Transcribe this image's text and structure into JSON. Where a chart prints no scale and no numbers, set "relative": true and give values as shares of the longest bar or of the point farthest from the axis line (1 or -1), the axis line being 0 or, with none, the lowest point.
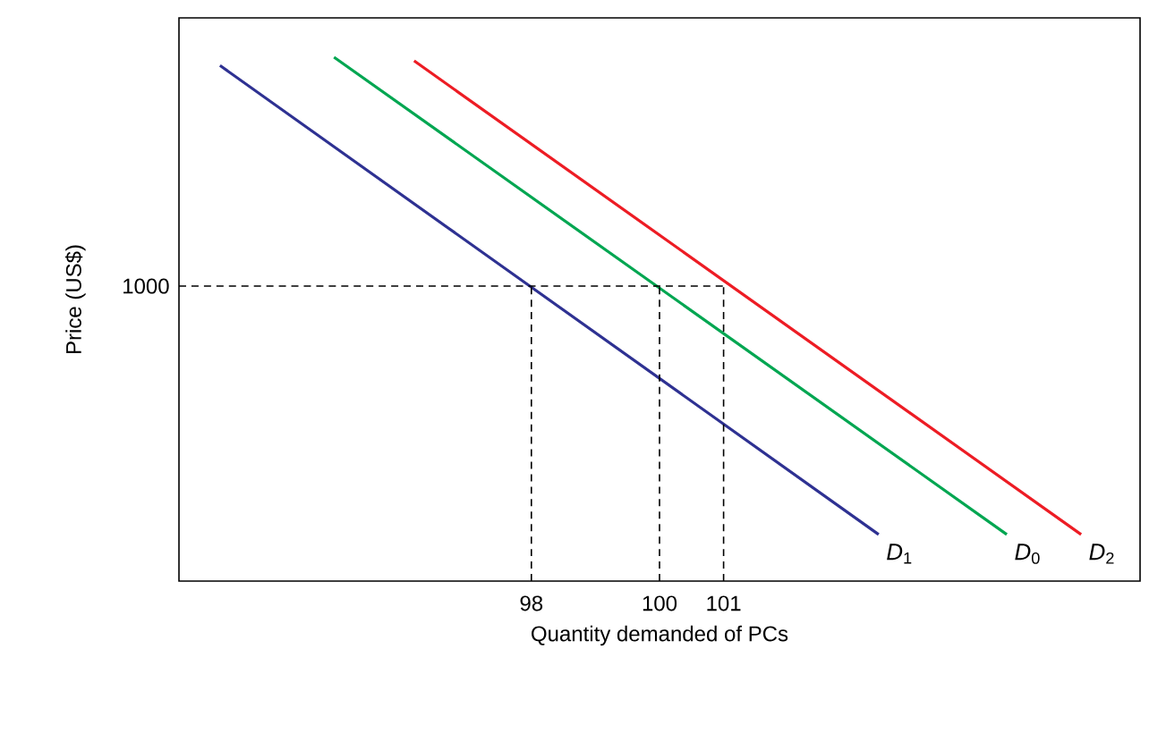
{
  "chart_data": {
    "type": "line",
    "relative": true,
    "xlabel": "Quantity demanded of PCs",
    "ylabel": "Price (US$)",
    "xlim": [
      92.5,
      107.5
    ],
    "xticks": [
      98,
      100,
      101
    ],
    "annotations": [
      {
        "text": "1000",
        "x": 92.5,
        "y": 0.563
      }
    ],
    "grid": false,
    "marker": "none",
    "series": [
      {
        "name": "*D*$_{1}$",
        "color": "#2e3192",
        "x": [
          93.14,
          103.42
        ],
        "values": [
          0.984,
          0.089
        ]
      },
      {
        "name": "*D*$_{0}$",
        "color": "#00a651",
        "x": [
          94.92,
          105.42
        ],
        "values": [
          1.0,
          0.089
        ]
      },
      {
        "name": "*D*$_{2}$",
        "color": "#ed1c24",
        "x": [
          96.17,
          106.58
        ],
        "values": [
          0.993,
          0.089
        ]
      },
      {
        "color": "#000000",
        "line_style": "dashed",
        "x": [
          92.5,
          101
        ],
        "values": [
          0.563,
          0.563
        ]
      },
      {
        "color": "#000000",
        "line_style": "dashed",
        "x": [
          98,
          98
        ],
        "values": [
          0,
          0.563
        ]
      },
      {
        "color": "#000000",
        "line_style": "dashed",
        "x": [
          100,
          100
        ],
        "values": [
          0,
          0.563
        ]
      },
      {
        "color": "#000000",
        "line_style": "dashed",
        "x": [
          101,
          101
        ],
        "values": [
          0,
          0.563
        ]
      }
    ]
  }
}
